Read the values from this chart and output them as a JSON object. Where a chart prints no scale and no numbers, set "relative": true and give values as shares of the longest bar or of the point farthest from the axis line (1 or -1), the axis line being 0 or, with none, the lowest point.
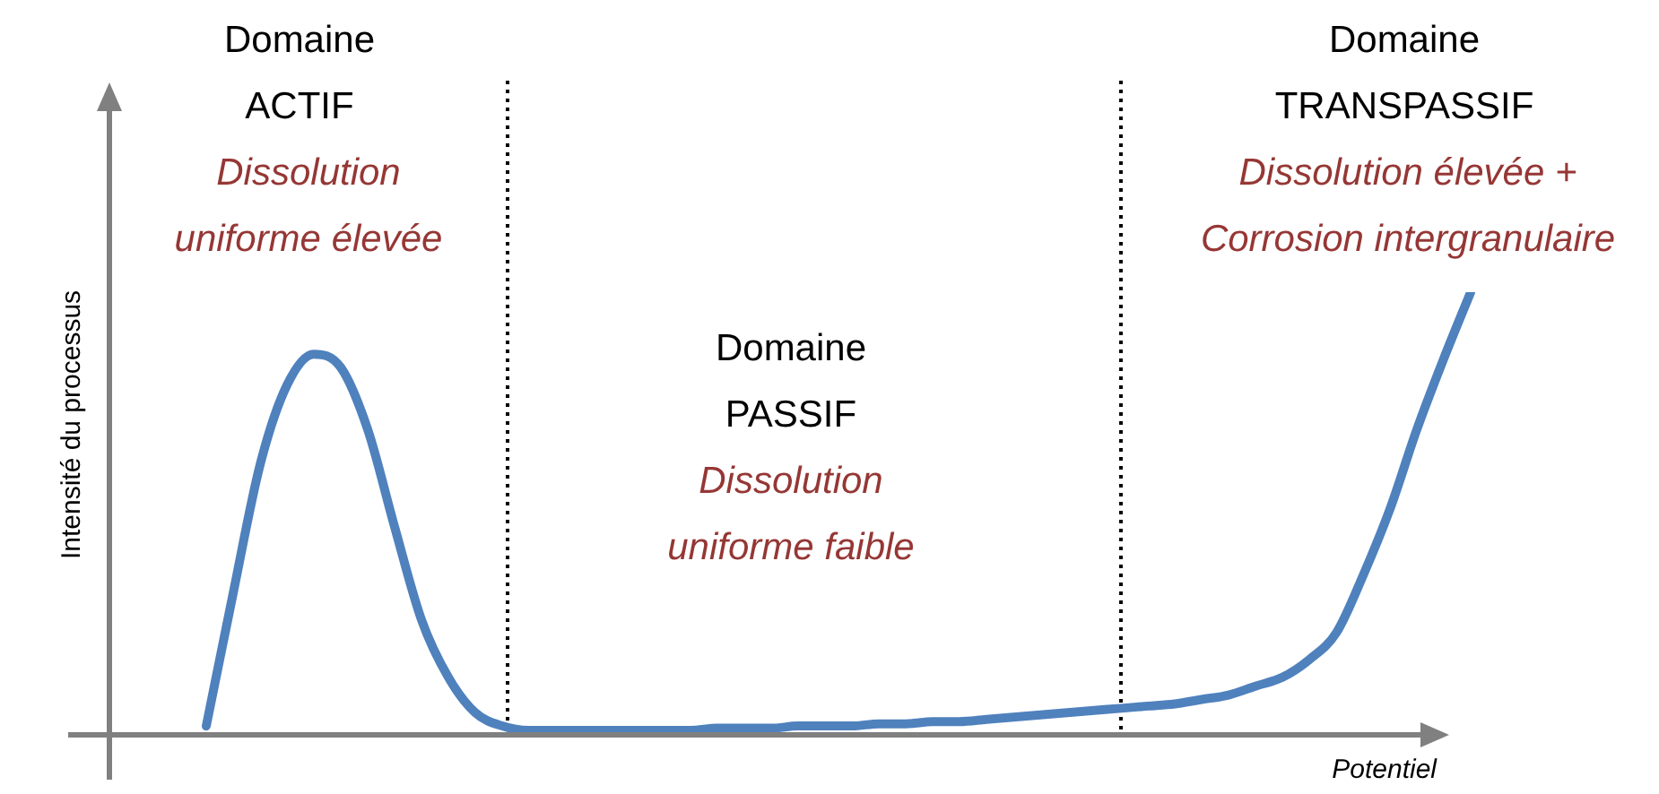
{
  "chart_data": {
    "type": "line",
    "relative": true,
    "xlabel": "Potentiel",
    "ylabel": "Intensité du processus",
    "categories": [
      null,
      null,
      null,
      null,
      null,
      null,
      null,
      null,
      null,
      null,
      null,
      null,
      null,
      null,
      null,
      null,
      null,
      null,
      null,
      null,
      null,
      null,
      null,
      null,
      null,
      null,
      null,
      null,
      null,
      null,
      null,
      null,
      null,
      null,
      null,
      null,
      null,
      null,
      null,
      null,
      null,
      null,
      null,
      null,
      null,
      null,
      null,
      null
    ],
    "series": [
      {
        "color": "#4f81bd",
        "values": [
          0.02,
          0.32,
          0.61,
          0.79,
          0.86,
          0.83,
          0.69,
          0.47,
          0.26,
          0.13,
          0.05,
          0.02,
          0.01,
          0.01,
          0.01,
          0.01,
          0.01,
          0.01,
          0.01,
          0.015,
          0.015,
          0.015,
          0.02,
          0.02,
          0.02,
          0.025,
          0.025,
          0.03,
          0.03,
          0.035,
          0.04,
          0.045,
          0.05,
          0.055,
          0.06,
          0.065,
          0.07,
          0.08,
          0.09,
          0.11,
          0.13,
          0.17,
          0.23,
          0.36,
          0.51,
          0.69,
          0.85,
          1
        ]
      }
    ],
    "annotations": [
      "Domaine\nACTIF",
      "Dissolution\nuniforme élevée",
      "Domaine\nPASSIF",
      "Dissolution\nuniforme faible",
      "Domaine\nTRANSPASSIF",
      "Dissolution élevée +\nCorrosion intergranulaire"
    ],
    "marker": "none",
    "line_style": "solid",
    "legend": false
  }
}
